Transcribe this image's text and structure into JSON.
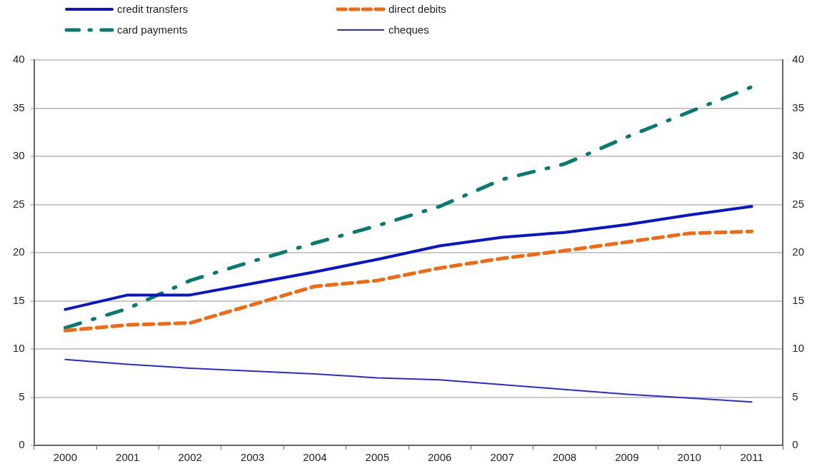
{
  "chart_data": {
    "type": "line",
    "categories": [
      "2000",
      "2001",
      "2002",
      "2003",
      "2004",
      "2005",
      "2006",
      "2007",
      "2008",
      "2009",
      "2010",
      "2011"
    ],
    "series": [
      {
        "name": "credit transfers",
        "color": "#0a14c8",
        "line_style": "solid",
        "values": [
          14.1,
          15.6,
          15.6,
          16.8,
          18.0,
          19.3,
          20.7,
          21.6,
          22.1,
          22.9,
          23.9,
          24.8
        ]
      },
      {
        "name": "direct debits",
        "color": "#f06a14",
        "line_style": "dashed",
        "values": [
          11.9,
          12.5,
          12.7,
          14.6,
          16.5,
          17.1,
          18.4,
          19.4,
          20.2,
          21.1,
          22.0,
          22.2
        ]
      },
      {
        "name": "card payments",
        "color": "#0a7a6e",
        "line_style": "dashdot",
        "values": [
          12.2,
          14.2,
          17.1,
          19.1,
          21.0,
          22.8,
          24.8,
          27.6,
          29.2,
          32.0,
          34.6,
          37.2
        ]
      },
      {
        "name": "cheques",
        "color": "#2a2ad8",
        "line_style": "solid",
        "values": [
          8.9,
          8.4,
          8.0,
          7.7,
          7.4,
          7.0,
          6.8,
          6.3,
          5.8,
          5.3,
          4.9,
          4.5
        ]
      }
    ],
    "ylim": [
      0,
      40
    ],
    "yticks": [
      0,
      5,
      10,
      15,
      20,
      25,
      30,
      35,
      40
    ],
    "y2lim": [
      0,
      40
    ],
    "y2ticks": [
      0,
      5,
      10,
      15,
      20,
      25,
      30,
      35,
      40
    ],
    "grid": "y",
    "legend": "top",
    "marker": "none"
  }
}
